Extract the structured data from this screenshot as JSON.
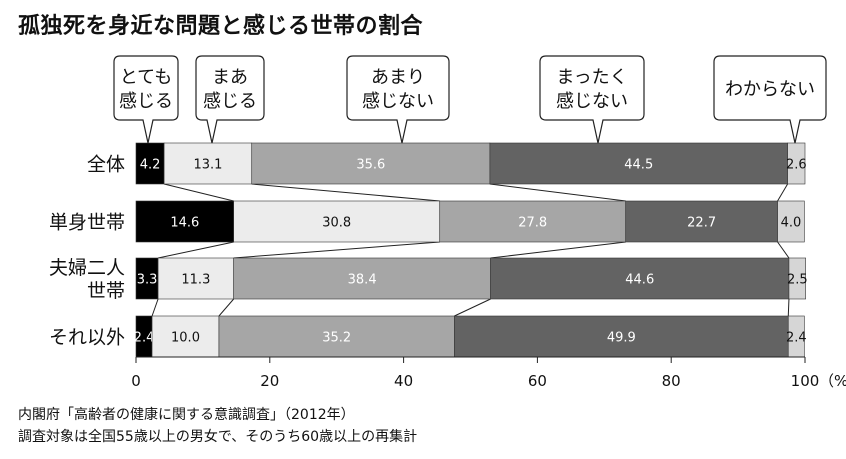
{
  "title": "孤独死を身近な問題と感じる世帯の割合",
  "source_lines": [
    "内閣府「高齢者の健康に関する意識調査」（2012年）",
    "調査対象は全国55歳以上の男女で、そのうち60歳以上の再集計"
  ],
  "chart_data": {
    "type": "bar",
    "orientation": "horizontal",
    "stacked": true,
    "title": "孤独死を身近な問題と感じる世帯の割合",
    "categories": [
      [
        "全体"
      ],
      [
        "単身世帯"
      ],
      [
        "夫婦二人",
        "世帯"
      ],
      [
        "それ以外"
      ]
    ],
    "series": [
      {
        "name": [
          "とても",
          "感じる"
        ],
        "color": "#000000",
        "label_color": "#ffffff",
        "values": [
          4.2,
          14.6,
          3.3,
          2.4
        ]
      },
      {
        "name": [
          "まあ",
          "感じる"
        ],
        "color": "#ececec",
        "label_color": "#111111",
        "values": [
          13.1,
          30.8,
          11.3,
          10.0
        ]
      },
      {
        "name": [
          "あまり",
          "感じない"
        ],
        "color": "#a6a6a6",
        "label_color": "#ffffff",
        "values": [
          35.6,
          27.8,
          38.4,
          35.2
        ]
      },
      {
        "name": [
          "まったく",
          "感じない"
        ],
        "color": "#636363",
        "label_color": "#ffffff",
        "values": [
          44.5,
          22.7,
          44.6,
          49.9
        ]
      },
      {
        "name": [
          "わからない"
        ],
        "color": "#d6d6d6",
        "label_color": "#111111",
        "values": [
          2.6,
          4.0,
          2.5,
          2.4
        ]
      }
    ],
    "xlim": [
      0,
      100
    ],
    "x_ticks": [
      "0",
      "20",
      "40",
      "60",
      "80",
      "100"
    ],
    "x_unit": "（%）",
    "legend": "callouts above bars"
  }
}
